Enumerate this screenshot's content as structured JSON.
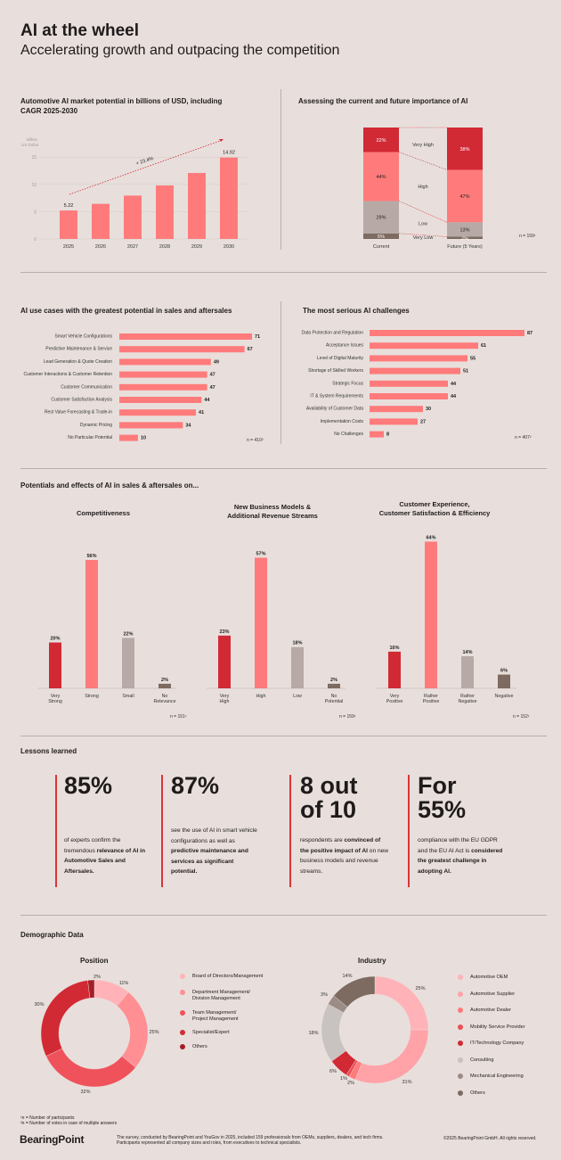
{
  "header": {
    "title": "AI at the wheel",
    "subtitle": "Accelerating growth and outpacing the competition"
  },
  "market": {
    "title": "Automotive AI market potential in billions of USD, including CAGR 2025-2030",
    "ylabel": "Billion US Dollar",
    "cagr_label": "+ 23.4%"
  },
  "importance": {
    "title": "Assessing the current and future importance of AI",
    "n_note": "n = 159¹"
  },
  "usecases": {
    "title": "AI use cases with the greatest potential in sales and aftersales",
    "n_note": "n = 410²"
  },
  "challenges": {
    "title": "The most serious AI challenges",
    "n_note": "n = 407²"
  },
  "potentials": {
    "title": "Potentials and effects of AI in sales & aftersales on...",
    "panels": [
      {
        "title": "Competitiveness",
        "n_note": "n = 151¹"
      },
      {
        "title": "New Business Models &\nAdditional Revenue Streams",
        "n_note": "n = 159¹"
      },
      {
        "title": "Customer Experience,\nCustomer Satisfaction & Efficiency",
        "n_note": "n = 152¹"
      }
    ]
  },
  "lessons": {
    "title": "Lessons learned",
    "items": [
      {
        "big": "85%",
        "text_pre": "of experts confirm the tremendous ",
        "text_bold": "relevance of AI in Automotive Sales and Aftersales."
      },
      {
        "big": "87%",
        "text_pre": "see the use of AI in smart vehicle configurations as well as ",
        "text_bold": "predictive maintenance and services as significant potential."
      },
      {
        "big": "8 out\nof 10",
        "text_pre": "respondents are ",
        "text_bold": "convinced of the positive impact of AI",
        "text_post": " on new business models and revenue streams."
      },
      {
        "big": "For\n55%",
        "text_pre": "compliance with the EU GDPR and the EU AI Act is ",
        "text_bold": "considered the greatest challenge in adopting AI."
      }
    ]
  },
  "demographics": {
    "title": "Demographic Data",
    "position_title": "Position",
    "industry_title": "Industry",
    "position_legend": [
      "Board of Directors/Management",
      "Department Management/\nDivision Management",
      "Team Management/\nProject Management",
      "Specialist/Expert",
      "Others"
    ],
    "industry_legend": [
      "Automotive OEM",
      "Automotive Supplier",
      "Automotive Dealer",
      "Mobility Service Provider",
      "IT/Technology Company",
      "Consulting",
      "Mechanical Engineering",
      "Others"
    ]
  },
  "footer": {
    "note1": "¹n = Number of participants",
    "note2": "²n = Number of votes in case of multiple answers",
    "logo": "BearingPoint",
    "survey_line1": "The survey, conducted by BearingPoint and YouGov in 2025, included 159 professionals from OEMs, suppliers, dealers, and tech firms.",
    "survey_line2": "Participants represented all company sizes and roles, from executives to technical specialists.",
    "copyright": "©2025 BearingPoint GmbH. All rights reserved."
  },
  "colors": {
    "salmon": "#ff7b7b",
    "red": "#d12a35",
    "dark_red": "#a41e27",
    "taupe": "#b7aaa6",
    "brown": "#7d6a60",
    "pink": "#ffb3b8"
  },
  "chart_data": [
    {
      "id": "market",
      "type": "bar",
      "categories": [
        "2025",
        "2026",
        "2027",
        "2028",
        "2029",
        "2030"
      ],
      "values": [
        5.22,
        6.44,
        7.95,
        9.81,
        12.1,
        14.92
      ],
      "labels": [
        "5.22",
        "",
        "",
        "",
        "",
        "14.92"
      ],
      "yticks": [
        0,
        5,
        10,
        15
      ],
      "ylim": [
        0,
        17
      ],
      "ylabel": "Billion US Dollar"
    },
    {
      "id": "importance",
      "type": "bar",
      "stacked": true,
      "categories": [
        "Current",
        "Future (5 Years)"
      ],
      "series": [
        {
          "name": "Very Low",
          "values": [
            5,
            2
          ]
        },
        {
          "name": "Low",
          "values": [
            29,
            13
          ]
        },
        {
          "name": "High",
          "values": [
            44,
            47
          ]
        },
        {
          "name": "Very High",
          "values": [
            22,
            38
          ]
        }
      ],
      "ylim": [
        0,
        100
      ]
    },
    {
      "id": "usecases",
      "type": "bar",
      "orientation": "horizontal",
      "categories": [
        "Smart Vehicle Configurations",
        "Predictive Maintenance & Service",
        "Lead Generation & Quote Creation",
        "Customer Interactions & Customer Retention",
        "Customer Communication",
        "Customer Satisfaction Analysis",
        "Rest Value Forecasting & Trade-in",
        "Dynamic Pricing",
        "No Particular Potential"
      ],
      "values": [
        71,
        67,
        49,
        47,
        47,
        44,
        41,
        34,
        10
      ]
    },
    {
      "id": "challenges",
      "type": "bar",
      "orientation": "horizontal",
      "categories": [
        "Data Protection and Regulation",
        "Acceptance Issues",
        "Level of Digital Maturity",
        "Shortage of Skilled Workers",
        "Strategic Focus",
        "IT & System Requirements",
        "Availability of Customer Data",
        "Implementation Costs",
        "No Challenges"
      ],
      "values": [
        87,
        61,
        55,
        51,
        44,
        44,
        30,
        27,
        8
      ]
    },
    {
      "id": "competitiveness",
      "type": "bar",
      "categories": [
        "Very\nStrong",
        "Strong",
        "Small",
        "No\nRelevance"
      ],
      "values": [
        20,
        56,
        22,
        2
      ],
      "labels": [
        "20%",
        "56%",
        "22%",
        "2%"
      ]
    },
    {
      "id": "business_models",
      "type": "bar",
      "categories": [
        "Very\nHigh",
        "High",
        "Low",
        "No\nPotential"
      ],
      "values": [
        23,
        57,
        18,
        2
      ],
      "labels": [
        "23%",
        "57%",
        "18%",
        "2%"
      ]
    },
    {
      "id": "customer_experience",
      "type": "bar",
      "categories": [
        "Very\nPositive",
        "Rather\nPositive",
        "Rather\nNegative",
        "Negative"
      ],
      "values": [
        16,
        64,
        14,
        6
      ],
      "labels": [
        "16%",
        "64%",
        "14%",
        "6%"
      ]
    },
    {
      "id": "position",
      "type": "pie",
      "categories": [
        "Board of Directors/Management",
        "Department Management/Division Management",
        "Team Management/Project Management",
        "Specialist/Expert",
        "Others"
      ],
      "values": [
        11,
        25,
        32,
        30,
        2
      ],
      "labels": [
        "11%",
        "25%",
        "32%",
        "30%",
        "2%"
      ]
    },
    {
      "id": "industry",
      "type": "pie",
      "categories": [
        "Automotive OEM",
        "Automotive Supplier",
        "Automotive Dealer",
        "Mobility Service Provider",
        "IT/Technology Company",
        "Consulting",
        "Mechanical Engineering",
        "Others"
      ],
      "values": [
        25,
        31,
        2,
        1,
        6,
        18,
        3,
        14
      ],
      "labels": [
        "25%",
        "31%",
        "2%",
        "1%",
        "6%",
        "18%",
        "3%",
        "14%"
      ]
    }
  ]
}
